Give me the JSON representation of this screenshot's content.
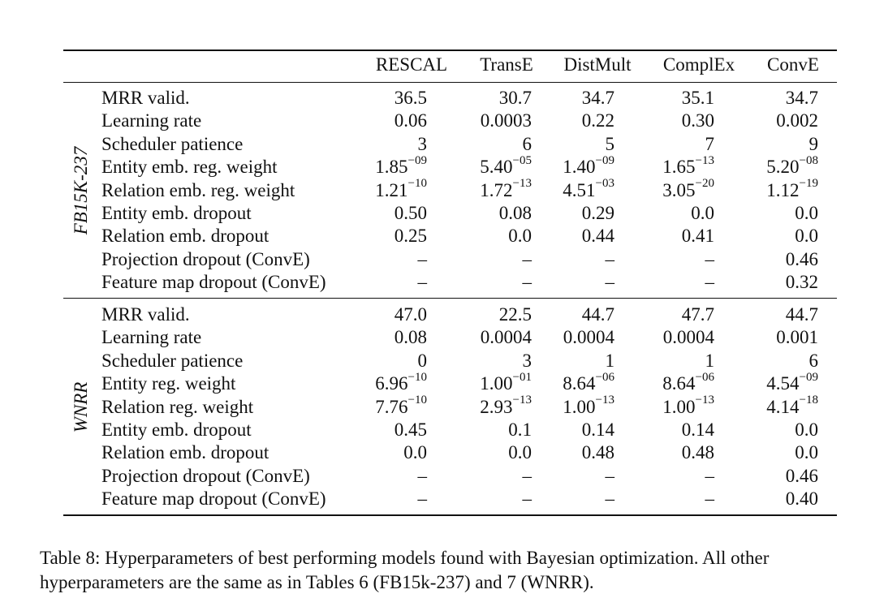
{
  "table": {
    "columns": [
      "RESCAL",
      "TransE",
      "DistMult",
      "ComplEx",
      "ConvE"
    ],
    "groups": [
      {
        "name": "FB15K-237",
        "rows": [
          {
            "label": "MRR valid.",
            "values": [
              [
                "36.5"
              ],
              [
                "30.7"
              ],
              [
                "34.7"
              ],
              [
                "35.1"
              ],
              [
                "34.7"
              ]
            ]
          },
          {
            "label": "Learning rate",
            "values": [
              [
                "0.06"
              ],
              [
                "0.0003"
              ],
              [
                "0.22"
              ],
              [
                "0.30"
              ],
              [
                "0.002"
              ]
            ]
          },
          {
            "label": "Scheduler patience",
            "values": [
              [
                "3"
              ],
              [
                "6"
              ],
              [
                "5"
              ],
              [
                "7"
              ],
              [
                "9"
              ]
            ]
          },
          {
            "label": "Entity emb. reg. weight",
            "values": [
              [
                "1.85",
                "−09"
              ],
              [
                "5.40",
                "−05"
              ],
              [
                "1.40",
                "−09"
              ],
              [
                "1.65",
                "−13"
              ],
              [
                "5.20",
                "−08"
              ]
            ]
          },
          {
            "label": "Relation emb. reg. weight",
            "values": [
              [
                "1.21",
                "−10"
              ],
              [
                "1.72",
                "−13"
              ],
              [
                "4.51",
                "−03"
              ],
              [
                "3.05",
                "−20"
              ],
              [
                "1.12",
                "−19"
              ]
            ]
          },
          {
            "label": "Entity emb. dropout",
            "values": [
              [
                "0.50"
              ],
              [
                "0.08"
              ],
              [
                "0.29"
              ],
              [
                "0.0"
              ],
              [
                "0.0"
              ]
            ]
          },
          {
            "label": "Relation emb. dropout",
            "values": [
              [
                "0.25"
              ],
              [
                "0.0"
              ],
              [
                "0.44"
              ],
              [
                "0.41"
              ],
              [
                "0.0"
              ]
            ]
          },
          {
            "label": "Projection dropout (ConvE)",
            "values": [
              [
                "–"
              ],
              [
                "–"
              ],
              [
                "–"
              ],
              [
                "–"
              ],
              [
                "0.46"
              ]
            ]
          },
          {
            "label": "Feature map dropout (ConvE)",
            "values": [
              [
                "–"
              ],
              [
                "–"
              ],
              [
                "–"
              ],
              [
                "–"
              ],
              [
                "0.32"
              ]
            ]
          }
        ]
      },
      {
        "name": "WNRR",
        "rows": [
          {
            "label": "MRR valid.",
            "values": [
              [
                "47.0"
              ],
              [
                "22.5"
              ],
              [
                "44.7"
              ],
              [
                "47.7"
              ],
              [
                "44.7"
              ]
            ]
          },
          {
            "label": "Learning rate",
            "values": [
              [
                "0.08"
              ],
              [
                "0.0004"
              ],
              [
                "0.0004"
              ],
              [
                "0.0004"
              ],
              [
                "0.001"
              ]
            ]
          },
          {
            "label": "Scheduler patience",
            "values": [
              [
                "0"
              ],
              [
                "3"
              ],
              [
                "1"
              ],
              [
                "1"
              ],
              [
                "6"
              ]
            ]
          },
          {
            "label": "Entity reg. weight",
            "values": [
              [
                "6.96",
                "−10"
              ],
              [
                "1.00",
                "−01"
              ],
              [
                "8.64",
                "−06"
              ],
              [
                "8.64",
                "−06"
              ],
              [
                "4.54",
                "−09"
              ]
            ]
          },
          {
            "label": "Relation reg. weight",
            "values": [
              [
                "7.76",
                "−10"
              ],
              [
                "2.93",
                "−13"
              ],
              [
                "1.00",
                "−13"
              ],
              [
                "1.00",
                "−13"
              ],
              [
                "4.14",
                "−18"
              ]
            ]
          },
          {
            "label": "Entity emb. dropout",
            "values": [
              [
                "0.45"
              ],
              [
                "0.1"
              ],
              [
                "0.14"
              ],
              [
                "0.14"
              ],
              [
                "0.0"
              ]
            ]
          },
          {
            "label": "Relation emb. dropout",
            "values": [
              [
                "0.0"
              ],
              [
                "0.0"
              ],
              [
                "0.48"
              ],
              [
                "0.48"
              ],
              [
                "0.0"
              ]
            ]
          },
          {
            "label": "Projection dropout (ConvE)",
            "values": [
              [
                "–"
              ],
              [
                "–"
              ],
              [
                "–"
              ],
              [
                "–"
              ],
              [
                "0.46"
              ]
            ]
          },
          {
            "label": "Feature map dropout (ConvE)",
            "values": [
              [
                "–"
              ],
              [
                "–"
              ],
              [
                "–"
              ],
              [
                "–"
              ],
              [
                "0.40"
              ]
            ]
          }
        ]
      }
    ]
  },
  "caption": "Table 8: Hyperparameters of best performing models found with Bayesian optimization. All other hyperparameters are the same as in Tables 6 (FB15k-237) and 7 (WNRR)."
}
